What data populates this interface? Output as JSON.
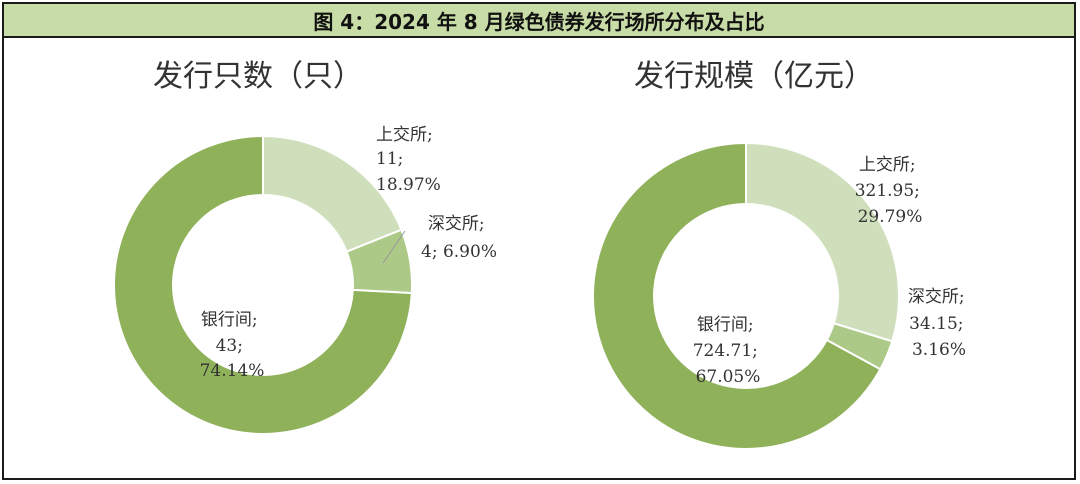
{
  "figure_title": "图 4：2024 年 8 月绿色债券发行场所分布及占比",
  "chart_data": [
    {
      "type": "pie",
      "subtype": "donut",
      "title": "发行只数（只）",
      "slices": [
        {
          "name": "上交所",
          "value": 11,
          "percent": "18.97%",
          "value_text": "11",
          "label": [
            "上交所;",
            "11;",
            "18.97%"
          ],
          "color": "#cfdfbb"
        },
        {
          "name": "深交所",
          "value": 4,
          "percent": "6.90%",
          "value_text": "4",
          "label": [
            "深交所;",
            "4; 6.90%"
          ],
          "color": "#adc987"
        },
        {
          "name": "银行间",
          "value": 43,
          "percent": "74.14%",
          "value_text": "43",
          "label": [
            "银行间;",
            "43;",
            "74.14%"
          ],
          "color": "#8fb15a"
        }
      ]
    },
    {
      "type": "pie",
      "subtype": "donut",
      "title": "发行规模（亿元）",
      "slices": [
        {
          "name": "上交所",
          "value": 321.95,
          "percent": "29.79%",
          "value_text": "321.95",
          "label": [
            "上交所;",
            "321.95;",
            "29.79%"
          ],
          "color": "#cfdfbb"
        },
        {
          "name": "深交所",
          "value": 34.15,
          "percent": "3.16%",
          "value_text": "34.15",
          "label": [
            "深交所;",
            "34.15;",
            "3.16%"
          ],
          "color": "#adc987"
        },
        {
          "name": "银行间",
          "value": 724.71,
          "percent": "67.05%",
          "value_text": "724.71",
          "label": [
            "银行间;",
            "724.71;",
            "67.05%"
          ],
          "color": "#8fb15a"
        }
      ]
    }
  ]
}
